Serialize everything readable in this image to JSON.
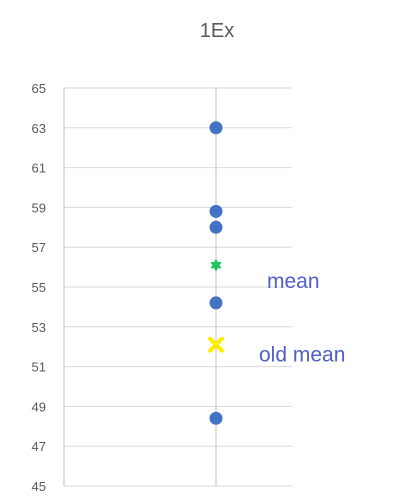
{
  "chart_data": {
    "type": "scatter",
    "title": "1Ex",
    "xlabel": "",
    "ylabel": "",
    "ylim": [
      45,
      65
    ],
    "y_ticks": [
      45,
      47,
      49,
      51,
      53,
      55,
      57,
      59,
      61,
      63,
      65
    ],
    "grid": true,
    "legend": "none",
    "series": [
      {
        "marker": "circle",
        "color": "#4472c4",
        "points": [
          63.0,
          58.8,
          58.0,
          54.2,
          48.4
        ]
      },
      {
        "marker": "star",
        "color": "#22c55e",
        "points": [
          56.1
        ]
      },
      {
        "marker": "x",
        "color": "#ffee00",
        "points": [
          52.1
        ]
      }
    ],
    "annotations": [
      {
        "text": "mean",
        "y": 55.3
      },
      {
        "text": "old mean",
        "y": 51.6
      }
    ]
  }
}
